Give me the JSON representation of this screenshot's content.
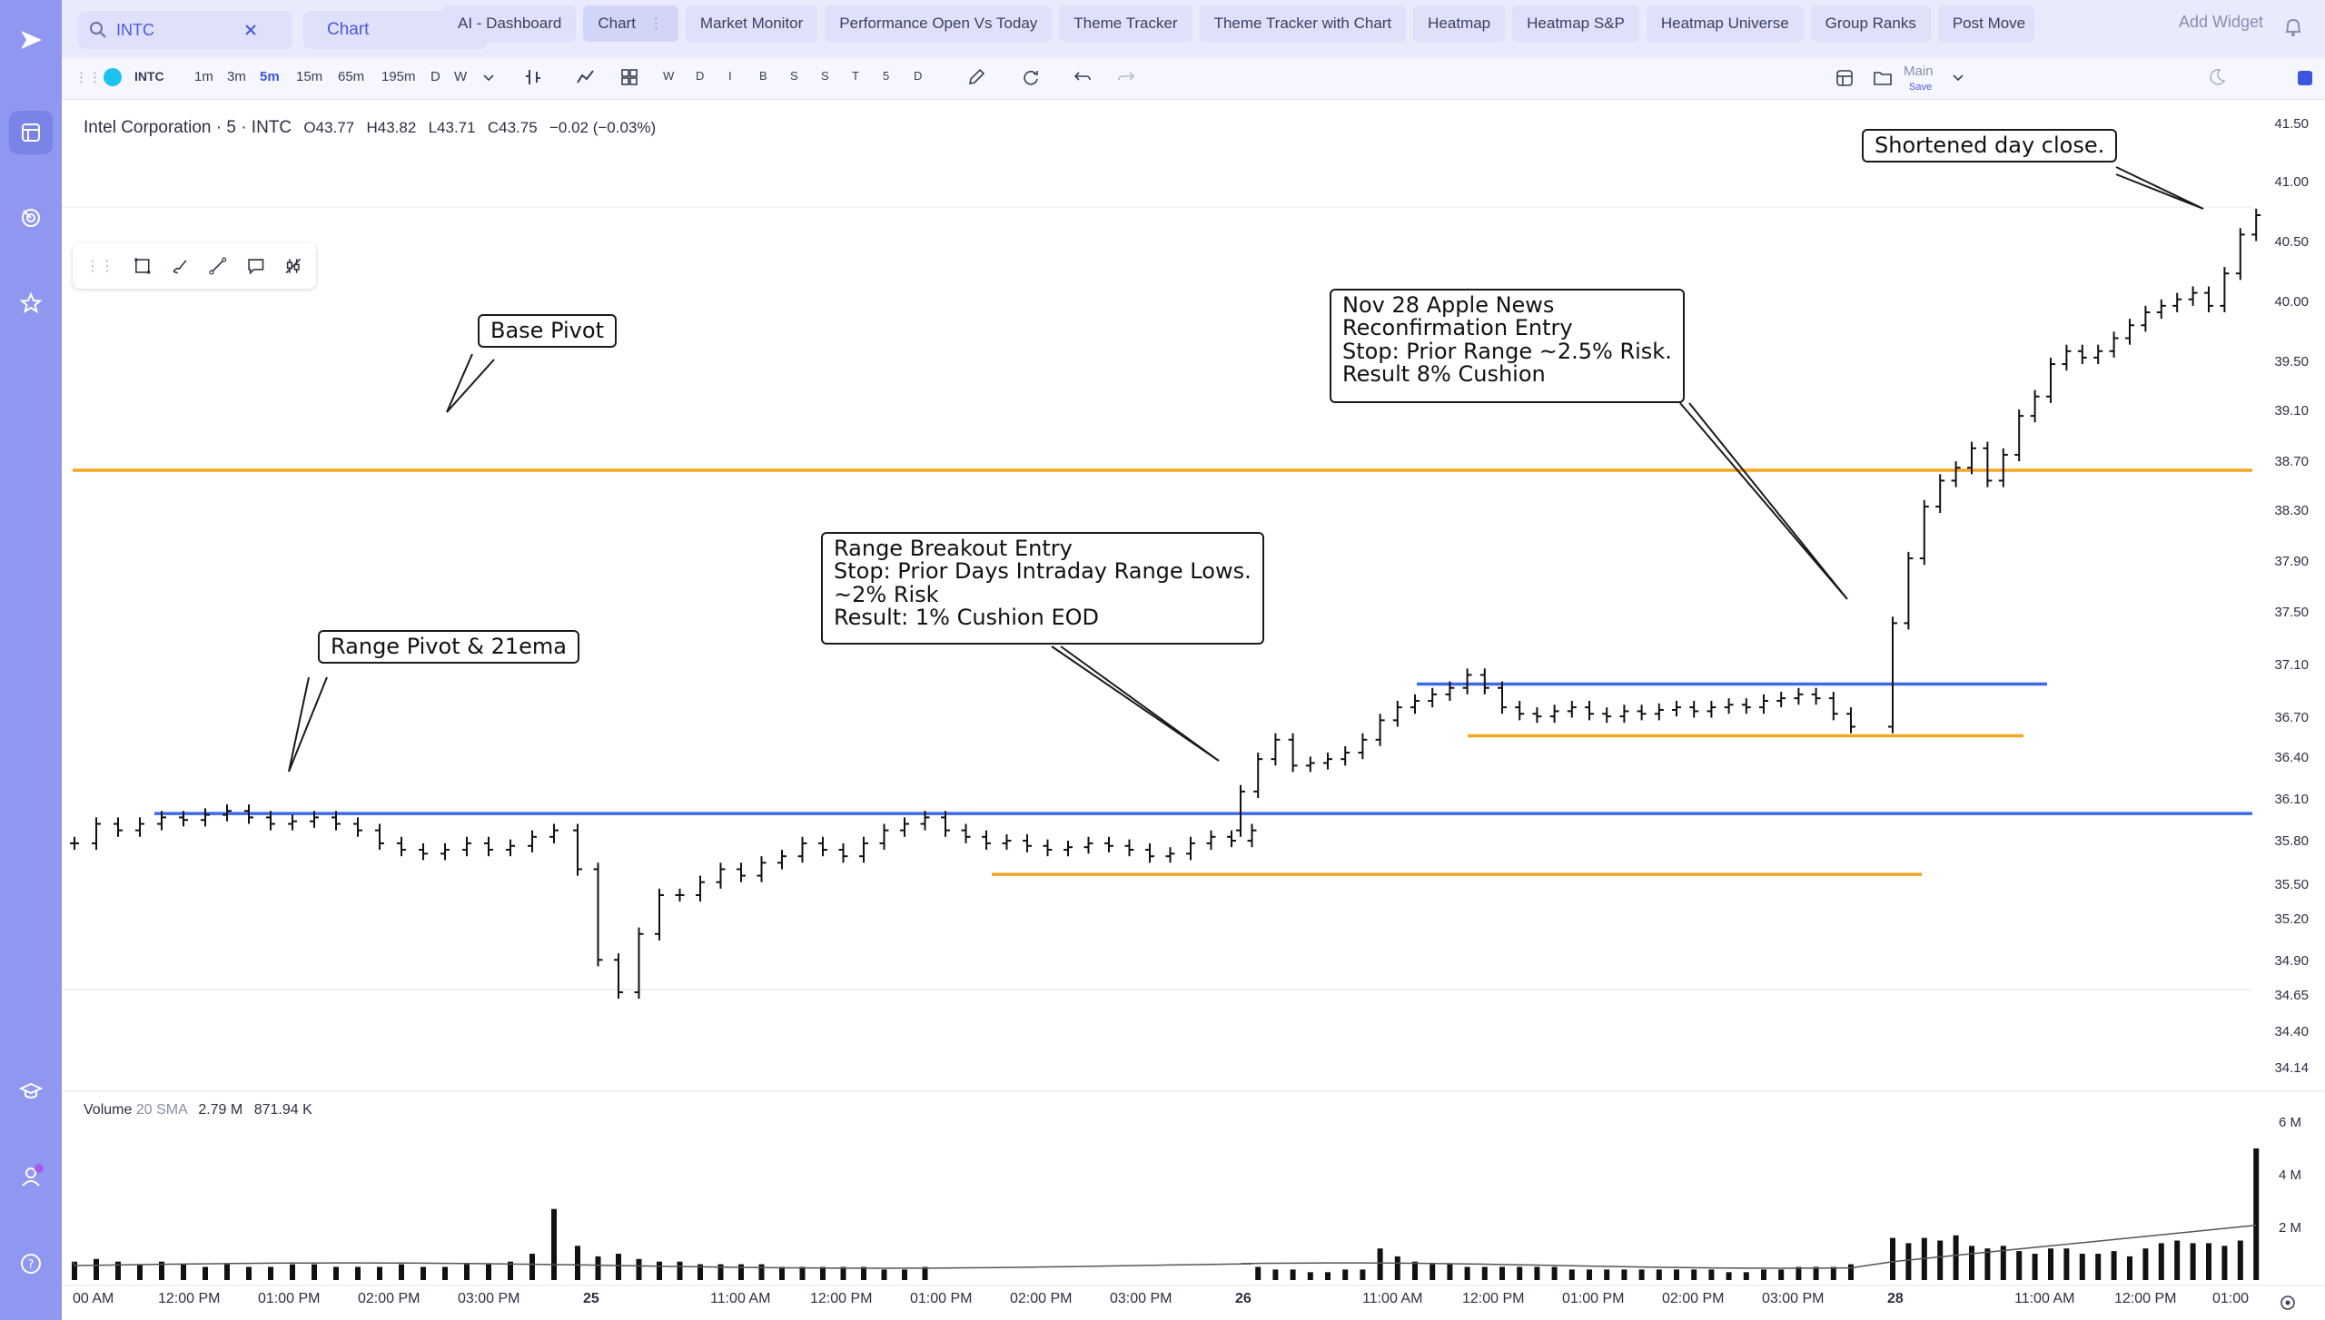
{
  "topbar": {
    "symbol": "INTC",
    "layout_select": "Chart",
    "tabs": [
      "AI - Dashboard",
      "Chart",
      "Market Monitor",
      "Performance Open Vs Today",
      "Theme Tracker",
      "Theme Tracker with Chart",
      "Heatmap",
      "Heatmap S&P",
      "Heatmap Universe",
      "Group Ranks",
      "Post Move"
    ],
    "active_tab": "Chart",
    "add_widget": "Add Widget"
  },
  "toolbar": {
    "symbol": "INTC",
    "intervals": [
      "1m",
      "3m",
      "5m",
      "15m",
      "65m",
      "195m",
      "D",
      "W"
    ],
    "active_interval": "5m",
    "period_buttons": [
      "W",
      "D",
      "I",
      "B",
      "S",
      "S",
      "T",
      "5",
      "D"
    ],
    "layout_name": "Main",
    "layout_save": "Save"
  },
  "chart": {
    "legend_title": "Intel Corporation · 5 · INTC",
    "open": "O43.77",
    "high": "H43.82",
    "low": "L43.71",
    "close": "C43.75",
    "change": "−0.02 (−0.03%)",
    "volume_legend": "Volume",
    "volume_sma": "20 SMA",
    "volume_v1": "2.79 M",
    "volume_v2": "871.94 K",
    "price_ticks": [
      "41.50",
      "41.00",
      "40.50",
      "40.00",
      "39.50",
      "39.10",
      "38.70",
      "38.30",
      "37.90",
      "37.50",
      "37.10",
      "36.70",
      "36.40",
      "36.10",
      "35.80",
      "35.50",
      "35.20",
      "34.90",
      "34.65",
      "34.40",
      "34.14"
    ],
    "volume_ticks": [
      "6 M",
      "4 M",
      "2 M"
    ],
    "time_ticks": [
      "00 AM",
      "12:00 PM",
      "01:00 PM",
      "02:00 PM",
      "03:00 PM",
      "25",
      "11:00 AM",
      "12:00 PM",
      "01:00 PM",
      "02:00 PM",
      "03:00 PM",
      "26",
      "11:00 AM",
      "12:00 PM",
      "01:00 PM",
      "02:00 PM",
      "03:00 PM",
      "28",
      "11:00 AM",
      "12:00 PM",
      "01:00"
    ],
    "callouts": {
      "base_pivot": "Base Pivot",
      "range_pivot": "Range Pivot & 21ema",
      "breakout": [
        "Range Breakout Entry",
        "Stop: Prior Days Intraday Range Lows.",
        "~2% Risk",
        "Result: 1% Cushion EOD"
      ],
      "apple_news": [
        "Nov 28 Apple News",
        "Reconfirmation Entry",
        "Stop: Prior Range ~2.5% Risk.",
        "Result 8% Cushion"
      ],
      "shortened": "Shortened day close."
    },
    "colors": {
      "pivot_orange": "#f5a623",
      "range_blue": "#3c6bea",
      "bars": "#111111",
      "accent": "#4a5bd8"
    }
  },
  "chart_data": {
    "type": "bar",
    "title": "Intel Corporation · 5 · INTC",
    "yscale": [
      34.14,
      41.5
    ],
    "levels": [
      {
        "name": "Base Pivot",
        "price": 38.78,
        "color": "#f5a623"
      },
      {
        "name": "Range Pivot & 21ema",
        "price": 36.13,
        "color": "#3c6bea"
      },
      {
        "name": "Range high",
        "price": 37.13,
        "color": "#3c6bea"
      },
      {
        "name": "Range low",
        "price": 36.73,
        "color": "#f5a623"
      },
      {
        "name": "Prior range low",
        "price": 35.66,
        "color": "#f5a623"
      }
    ],
    "close_path": [
      35.9,
      36.05,
      36.0,
      36.05,
      36.1,
      36.08,
      36.12,
      36.15,
      36.1,
      36.05,
      36.07,
      36.1,
      36.05,
      36.0,
      35.9,
      35.85,
      35.82,
      35.85,
      35.9,
      35.85,
      35.88,
      35.95,
      36.0,
      35.7,
      35.0,
      34.75,
      35.2,
      35.5,
      35.5,
      35.6,
      35.7,
      35.65,
      35.75,
      35.8,
      35.9,
      35.85,
      35.8,
      35.9,
      36.0,
      36.05,
      36.1,
      36.0,
      35.95,
      35.9,
      35.92,
      35.88,
      35.85,
      35.87,
      35.9,
      35.88,
      35.85,
      35.8,
      35.82,
      35.9,
      35.95,
      35.92,
      36.0,
      36.3,
      36.55,
      36.7,
      36.5,
      36.52,
      36.55,
      36.6,
      36.7,
      36.85,
      36.95,
      37.0,
      37.05,
      37.1,
      37.2,
      37.1,
      36.95,
      36.9,
      36.88,
      36.92,
      36.95,
      36.9,
      36.88,
      36.92,
      36.9,
      36.93,
      36.95,
      36.92,
      36.95,
      36.97,
      36.95,
      37.0,
      37.02,
      37.05,
      37.02,
      36.9,
      36.8,
      37.6,
      38.1,
      38.5,
      38.7,
      38.8,
      38.95,
      38.7,
      38.9,
      39.2,
      39.35,
      39.6,
      39.7,
      39.65,
      39.7,
      39.8,
      39.9,
      40.0,
      40.05,
      40.1,
      40.15,
      40.05,
      40.3,
      40.6,
      40.75
    ],
    "volume_millions": [
      0.7,
      0.8,
      0.7,
      0.6,
      0.7,
      0.6,
      0.5,
      0.6,
      0.5,
      0.5,
      0.6,
      0.6,
      0.5,
      0.5,
      0.5,
      0.6,
      0.5,
      0.5,
      0.6,
      0.6,
      0.7,
      1.0,
      2.7,
      1.3,
      0.9,
      1.0,
      0.8,
      0.7,
      0.7,
      0.6,
      0.6,
      0.6,
      0.6,
      0.5,
      0.5,
      0.5,
      0.5,
      0.5,
      0.4,
      0.4,
      0.5,
      0.5,
      0.4,
      0.4,
      0.3,
      0.3,
      0.4,
      0.4,
      1.2,
      0.9,
      0.7,
      0.6,
      0.6,
      0.5,
      0.5,
      0.5,
      0.5,
      0.5,
      0.5,
      0.4,
      0.4,
      0.4,
      0.4,
      0.4,
      0.4,
      0.4,
      0.4,
      0.4,
      0.3,
      0.3,
      0.4,
      0.4,
      0.5,
      0.5,
      0.5,
      0.6,
      1.6,
      1.4,
      1.6,
      1.5,
      1.7,
      1.3,
      1.2,
      1.3,
      1.1,
      1.0,
      1.2,
      1.2,
      1.0,
      1.0,
      1.1,
      0.9,
      1.2,
      1.4,
      1.5,
      1.4,
      1.4,
      1.3,
      1.5,
      5.0
    ]
  }
}
